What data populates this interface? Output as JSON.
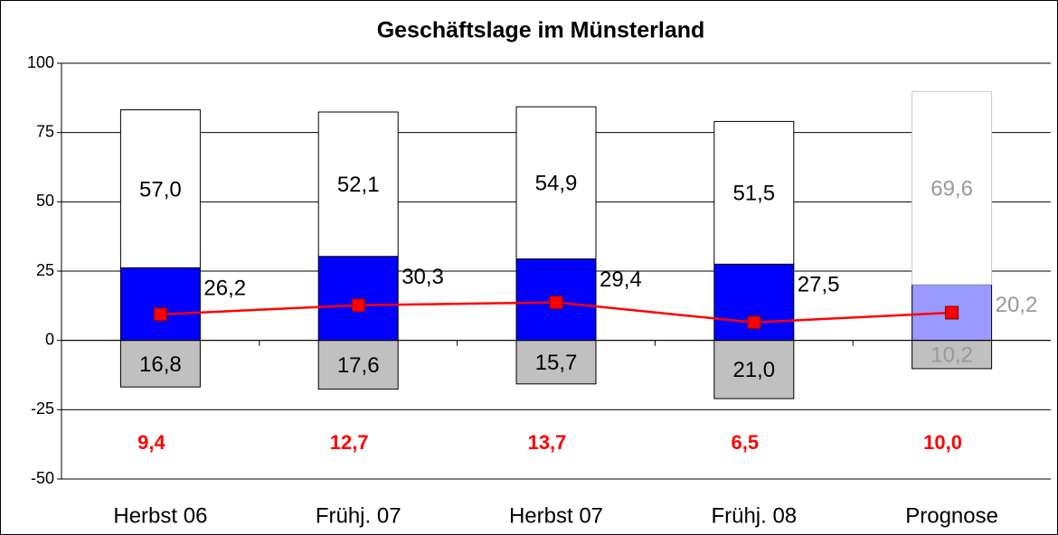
{
  "chart_data": {
    "type": "bar",
    "title": "Geschäftslage im Münsterland",
    "categories": [
      "Herbst 06",
      "Frühj. 07",
      "Herbst 07",
      "Frühj. 08",
      "Prognose"
    ],
    "ylim": [
      -50,
      100
    ],
    "yticks": [
      -50,
      -25,
      0,
      25,
      50,
      75,
      100
    ],
    "grid": true,
    "series": [
      {
        "values": [
          26.2,
          30.3,
          29.4,
          27.5,
          20.2
        ],
        "value_labels": [
          "26,2",
          "30,3",
          "29,4",
          "27,5",
          "20,2"
        ],
        "colors": [
          "#0000ff",
          "#0000ff",
          "#0000ff",
          "#0000ff",
          "#9999ff"
        ],
        "label_colors": [
          "#000000",
          "#000000",
          "#000000",
          "#000000",
          "#999999"
        ]
      },
      {
        "values": [
          57.0,
          52.1,
          54.9,
          51.5,
          69.6
        ],
        "value_labels": [
          "57,0",
          "52,1",
          "54,9",
          "51,5",
          "69,6"
        ],
        "colors": [
          "#ffffff",
          "#ffffff",
          "#ffffff",
          "#ffffff",
          "#ffffff"
        ],
        "label_colors": [
          "#000000",
          "#000000",
          "#000000",
          "#000000",
          "#999999"
        ]
      },
      {
        "values": [
          -16.8,
          -17.6,
          -15.7,
          -21.0,
          -10.2
        ],
        "value_labels": [
          "16,8",
          "17,6",
          "15,7",
          "21,0",
          "10,2"
        ],
        "colors": [
          "#c0c0c0",
          "#c0c0c0",
          "#c0c0c0",
          "#c0c0c0",
          "#c0c0c0"
        ],
        "label_colors": [
          "#000000",
          "#000000",
          "#000000",
          "#000000",
          "#999999"
        ]
      },
      {
        "type": "line",
        "color": "#ff0000",
        "values": [
          9.4,
          12.7,
          13.7,
          6.5,
          10.0
        ],
        "value_labels": [
          "9,4",
          "12,7",
          "13,7",
          "6,5",
          "10,0"
        ]
      }
    ]
  }
}
